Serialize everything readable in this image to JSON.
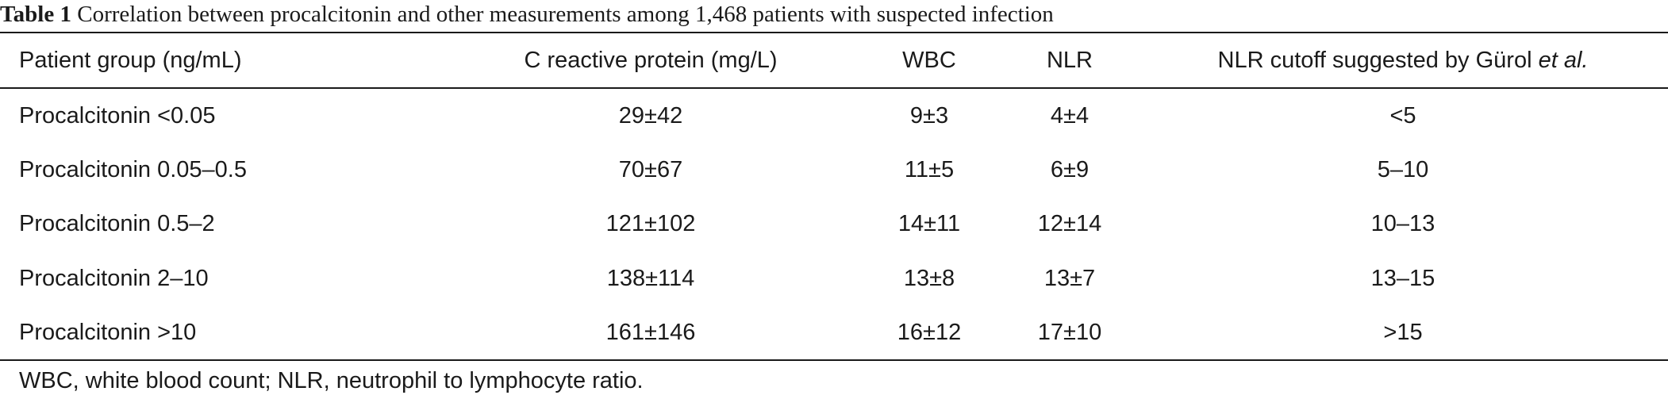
{
  "caption": {
    "label": "Table 1",
    "text": "Correlation between procalcitonin and other measurements among 1,468 patients with suspected infection"
  },
  "table": {
    "headers": {
      "group": "Patient group (ng/mL)",
      "crp": "C reactive protein (mg/L)",
      "wbc": "WBC",
      "nlr": "NLR",
      "cutoff_prefix": "NLR cutoff suggested by Gürol ",
      "cutoff_italic": "et al."
    },
    "rows": [
      {
        "group": "Procalcitonin <0.05",
        "crp": "29±42",
        "wbc": "9±3",
        "nlr": "4±4",
        "cutoff": "<5"
      },
      {
        "group": "Procalcitonin 0.05–0.5",
        "crp": "70±67",
        "wbc": "11±5",
        "nlr": "6±9",
        "cutoff": "5–10"
      },
      {
        "group": "Procalcitonin 0.5–2",
        "crp": "121±102",
        "wbc": "14±11",
        "nlr": "12±14",
        "cutoff": "10–13"
      },
      {
        "group": "Procalcitonin 2–10",
        "crp": "138±114",
        "wbc": "13±8",
        "nlr": "13±7",
        "cutoff": "13–15"
      },
      {
        "group": "Procalcitonin >10",
        "crp": "161±146",
        "wbc": "16±12",
        "nlr": "17±10",
        "cutoff": ">15"
      }
    ]
  },
  "footnote": "WBC, white blood count; NLR, neutrophil to lymphocyte ratio."
}
